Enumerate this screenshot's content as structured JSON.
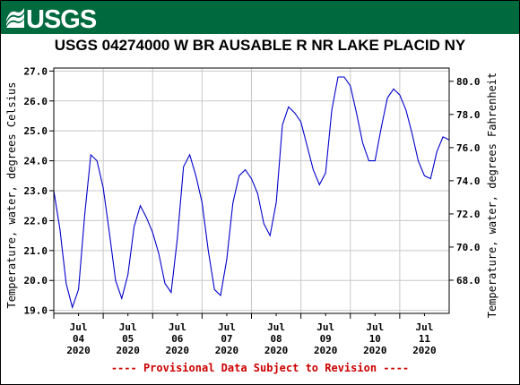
{
  "header": {
    "logo_text": "USGS",
    "logo_color": "#ffffff",
    "banner_color": "#006a3f"
  },
  "footer": {
    "provisional_note": "---- Provisional Data Subject to Revision ----"
  },
  "chart_data": {
    "type": "line",
    "title": "USGS 04274000 W BR AUSABLE R NR LAKE PLACID NY",
    "ylabel": "Temperature, water, degrees Celsius",
    "ylabel_right": "Temperature, water, degrees Fahrenheit",
    "ylim": [
      18.9,
      27.1
    ],
    "ylim_right": [
      66.0,
      80.8
    ],
    "yticks": [
      "19.0",
      "20.0",
      "21.0",
      "22.0",
      "23.0",
      "24.0",
      "25.0",
      "26.0",
      "27.0"
    ],
    "yticks_right": [
      "68.0",
      "70.0",
      "72.0",
      "74.0",
      "76.0",
      "78.0",
      "80.0"
    ],
    "x_tick_labels": [
      {
        "month": "Jul",
        "day": "04",
        "year": "2020"
      },
      {
        "month": "Jul",
        "day": "05",
        "year": "2020"
      },
      {
        "month": "Jul",
        "day": "06",
        "year": "2020"
      },
      {
        "month": "Jul",
        "day": "07",
        "year": "2020"
      },
      {
        "month": "Jul",
        "day": "08",
        "year": "2020"
      },
      {
        "month": "Jul",
        "day": "09",
        "year": "2020"
      },
      {
        "month": "Jul",
        "day": "10",
        "year": "2020"
      },
      {
        "month": "Jul",
        "day": "11",
        "year": "2020"
      }
    ],
    "x_range": [
      "2020-07-03 12:00",
      "2020-07-11 12:00"
    ],
    "line_color": "#0000cc",
    "grid": true,
    "series": [
      {
        "name": "",
        "x": [
          "2020-07-03 12:00",
          "2020-07-03 15:00",
          "2020-07-03 18:00",
          "2020-07-03 21:00",
          "2020-07-04 00:00",
          "2020-07-04 03:00",
          "2020-07-04 06:00",
          "2020-07-04 09:00",
          "2020-07-04 12:00",
          "2020-07-04 15:00",
          "2020-07-04 18:00",
          "2020-07-04 21:00",
          "2020-07-05 00:00",
          "2020-07-05 03:00",
          "2020-07-05 06:00",
          "2020-07-05 09:00",
          "2020-07-05 12:00",
          "2020-07-05 15:00",
          "2020-07-05 18:00",
          "2020-07-05 21:00",
          "2020-07-06 00:00",
          "2020-07-06 03:00",
          "2020-07-06 06:00",
          "2020-07-06 09:00",
          "2020-07-06 12:00",
          "2020-07-06 15:00",
          "2020-07-06 18:00",
          "2020-07-06 21:00",
          "2020-07-07 00:00",
          "2020-07-07 03:00",
          "2020-07-07 06:00",
          "2020-07-07 09:00",
          "2020-07-07 12:00",
          "2020-07-07 15:00",
          "2020-07-07 18:00",
          "2020-07-07 21:00",
          "2020-07-08 00:00",
          "2020-07-08 03:00",
          "2020-07-08 06:00",
          "2020-07-08 09:00",
          "2020-07-08 12:00",
          "2020-07-08 15:00",
          "2020-07-08 18:00",
          "2020-07-08 21:00",
          "2020-07-09 00:00",
          "2020-07-09 03:00",
          "2020-07-09 06:00",
          "2020-07-09 09:00",
          "2020-07-09 12:00",
          "2020-07-09 15:00",
          "2020-07-09 18:00",
          "2020-07-09 21:00",
          "2020-07-10 00:00",
          "2020-07-10 03:00",
          "2020-07-10 06:00",
          "2020-07-10 09:00",
          "2020-07-10 12:00",
          "2020-07-10 15:00",
          "2020-07-10 18:00",
          "2020-07-10 21:00",
          "2020-07-11 00:00",
          "2020-07-11 03:00",
          "2020-07-11 06:00",
          "2020-07-11 09:00",
          "2020-07-11 12:00"
        ],
        "values": [
          23.0,
          21.7,
          19.9,
          19.1,
          19.7,
          22.2,
          24.2,
          24.0,
          23.1,
          21.6,
          20.0,
          19.4,
          20.2,
          21.8,
          22.5,
          22.1,
          21.6,
          20.9,
          19.9,
          19.6,
          21.4,
          23.8,
          24.2,
          23.5,
          22.6,
          21.0,
          19.7,
          19.5,
          20.7,
          22.6,
          23.5,
          23.7,
          23.4,
          22.9,
          21.9,
          21.5,
          22.6,
          25.2,
          25.8,
          25.6,
          25.3,
          24.5,
          23.7,
          23.2,
          23.6,
          25.7,
          26.8,
          26.8,
          26.5,
          25.6,
          24.6,
          24.0,
          24.0,
          25.1,
          26.1,
          26.4,
          26.2,
          25.7,
          24.9,
          24.0,
          23.5,
          23.4,
          24.3,
          24.8,
          24.7
        ]
      }
    ]
  }
}
